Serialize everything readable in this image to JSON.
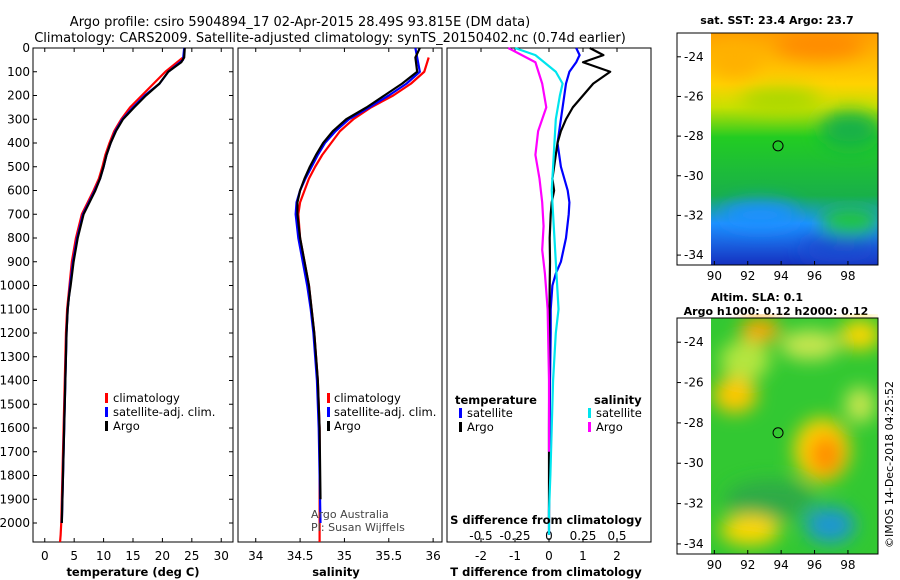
{
  "title_line1": "Argo profile: csiro 5904894_17 02-Apr-2015 28.49S 93.815E (DM data)",
  "title_line2": "Climatology: CARS2009. Satellite-adjusted climatology: synTS_20150402.nc (0.74d earlier)",
  "map_sst_title": "sat. SST: 23.4 Argo: 23.7",
  "map_sla_title1": "Altim. SLA: 0.1",
  "map_sla_title2": "Argo h1000: 0.12 h2000: 0.12",
  "credit_line1": "Argo Australia",
  "credit_line2": "PI: Susan Wijffels",
  "imos_stamp": "©IMOS 14-Dec-2018 04:25:52",
  "colors": {
    "climatology": "#ff0000",
    "satellite": "#0000ff",
    "argo": "#000000",
    "sal_satellite": "#00e5ee",
    "sal_argo": "#ff00ff"
  },
  "chart_data": [
    {
      "type": "line",
      "name": "temperature-panel",
      "xlabel": "temperature (deg C)",
      "ylabel": "",
      "xlim": [
        -2,
        32
      ],
      "ylim": [
        2080,
        0
      ],
      "xticks": [
        "0",
        "5",
        "10",
        "15",
        "20",
        "25",
        "30"
      ],
      "yticks": [
        "0",
        "100",
        "200",
        "300",
        "400",
        "500",
        "600",
        "700",
        "800",
        "900",
        "1000",
        "1100",
        "1200",
        "1300",
        "1400",
        "1500",
        "1600",
        "1700",
        "1800",
        "1900",
        "2000"
      ],
      "legend": [
        "climatology",
        "satellite-adj. clim.",
        "Argo"
      ],
      "series": [
        {
          "name": "climatology",
          "x": [
            23.5,
            22.5,
            20.5,
            18.5,
            16.5,
            14.5,
            13,
            11.8,
            11,
            10.3,
            9.8,
            9.2,
            8.3,
            7.3,
            6.3,
            5.3,
            4.6,
            4.2,
            4,
            3.8,
            3.6,
            3.5,
            3.4,
            3.3,
            3.2,
            3.1,
            3,
            2.9,
            2.8,
            2.7,
            2.6
          ],
          "y": [
            40,
            60,
            100,
            150,
            200,
            250,
            300,
            350,
            400,
            450,
            500,
            550,
            600,
            650,
            700,
            800,
            900,
            1000,
            1050,
            1100,
            1200,
            1300,
            1400,
            1500,
            1600,
            1700,
            1800,
            1900,
            2000,
            2050,
            2080
          ]
        },
        {
          "name": "satellite-adj. clim.",
          "x": [
            23.7,
            23.5,
            21,
            19.5,
            17,
            15,
            13.2,
            12,
            11.2,
            10.5,
            10,
            9.4,
            8.5,
            7.5,
            6.5,
            5.5,
            4.8,
            4.3,
            4.1,
            3.9,
            3.7,
            3.6,
            3.5,
            3.4,
            3.3,
            3.2,
            3.1,
            3,
            2.9
          ],
          "y": [
            0,
            50,
            100,
            150,
            200,
            250,
            300,
            350,
            400,
            450,
            500,
            550,
            600,
            650,
            700,
            800,
            900,
            1000,
            1050,
            1100,
            1200,
            1300,
            1400,
            1500,
            1600,
            1700,
            1800,
            1900,
            2000
          ]
        },
        {
          "name": "Argo",
          "x": [
            23.8,
            23.7,
            23.2,
            21,
            19.5,
            17.2,
            15.2,
            13.3,
            12.1,
            11.2,
            10.5,
            10,
            9.4,
            8.6,
            7.6,
            6.6,
            5.6,
            4.9,
            4.4,
            4.1,
            3.9,
            3.7,
            3.6,
            3.5,
            3.4,
            3.3,
            3.2,
            3.1,
            3,
            2.9
          ],
          "y": [
            0,
            40,
            60,
            100,
            150,
            200,
            250,
            300,
            350,
            400,
            450,
            500,
            550,
            600,
            650,
            700,
            800,
            900,
            1000,
            1050,
            1100,
            1200,
            1300,
            1400,
            1500,
            1600,
            1700,
            1800,
            1900,
            2000
          ]
        }
      ]
    },
    {
      "type": "line",
      "name": "salinity-panel",
      "xlabel": "salinity",
      "xlim": [
        33.8,
        36.1
      ],
      "ylim": [
        2080,
        0
      ],
      "xticks": [
        "34",
        "34.5",
        "35",
        "35.5",
        "36"
      ],
      "legend": [
        "climatology",
        "satellite-adj. clim.",
        "Argo"
      ],
      "series": [
        {
          "name": "climatology",
          "x": [
            35.95,
            35.9,
            35.75,
            35.55,
            35.3,
            35.1,
            34.95,
            34.85,
            34.75,
            34.67,
            34.6,
            34.55,
            34.5,
            34.48,
            34.5,
            34.55,
            34.6,
            34.63,
            34.66,
            34.68,
            34.7,
            34.71,
            34.72,
            34.72,
            34.72,
            34.72
          ],
          "y": [
            40,
            100,
            150,
            200,
            250,
            300,
            350,
            400,
            450,
            500,
            550,
            600,
            650,
            700,
            800,
            900,
            1000,
            1100,
            1200,
            1300,
            1400,
            1500,
            1600,
            1800,
            2000,
            2080
          ]
        },
        {
          "name": "satellite-adj. clim.",
          "x": [
            35.8,
            35.85,
            35.7,
            35.5,
            35.28,
            35.05,
            34.9,
            34.78,
            34.7,
            34.63,
            34.56,
            34.5,
            34.46,
            34.45,
            34.48,
            34.53,
            34.58,
            34.62,
            34.65,
            34.67,
            34.69,
            34.7,
            34.71,
            34.72,
            34.73
          ],
          "y": [
            0,
            100,
            150,
            200,
            250,
            300,
            350,
            400,
            450,
            500,
            550,
            600,
            650,
            700,
            800,
            900,
            1000,
            1100,
            1200,
            1300,
            1400,
            1500,
            1600,
            1800,
            2000
          ]
        },
        {
          "name": "Argo",
          "x": [
            35.85,
            35.8,
            35.82,
            35.65,
            35.45,
            35.25,
            35.02,
            34.87,
            34.76,
            34.68,
            34.61,
            34.55,
            34.5,
            34.47,
            34.47,
            34.5,
            34.55,
            34.6,
            34.63,
            34.66,
            34.68,
            34.7,
            34.71,
            34.72,
            34.73
          ],
          "y": [
            0,
            40,
            100,
            150,
            200,
            250,
            300,
            350,
            400,
            450,
            500,
            550,
            600,
            650,
            700,
            800,
            900,
            1000,
            1100,
            1200,
            1300,
            1400,
            1500,
            1600,
            1900
          ]
        }
      ]
    },
    {
      "type": "line",
      "name": "difference-panel",
      "xlabel": "T difference from climatology",
      "xlabel_top": "S difference from climatology",
      "xlim": [
        -3,
        3
      ],
      "ylim": [
        2080,
        0
      ],
      "xticks": [
        "-2",
        "-1",
        "0",
        "1",
        "2"
      ],
      "xticks_top": [
        "-0.5",
        "-0.25",
        "0",
        "0.25",
        "0.5"
      ],
      "legend_temperature_title": "temperature",
      "legend_salinity_title": "salinity",
      "legend_temperature": [
        "satellite",
        "Argo"
      ],
      "legend_salinity": [
        "satellite",
        "Argo"
      ],
      "series": [
        {
          "name": "temperature satellite",
          "x": [
            0.8,
            0.9,
            0.8,
            0.6,
            0.5,
            0.45,
            0.4,
            0.35,
            0.3,
            0.25,
            0.3,
            0.35,
            0.45,
            0.55,
            0.6,
            0.58,
            0.5,
            0.35,
            0.2,
            0.1,
            0.05,
            0.05,
            0.03,
            0.02,
            0.01,
            0.0,
            0.0
          ],
          "y": [
            0,
            30,
            60,
            100,
            150,
            200,
            250,
            300,
            350,
            400,
            450,
            500,
            550,
            600,
            650,
            700,
            800,
            900,
            950,
            1000,
            1100,
            1200,
            1400,
            1600,
            1800,
            1950,
            2050
          ]
        },
        {
          "name": "temperature Argo",
          "x": [
            1.2,
            1.6,
            1.0,
            1.8,
            1.3,
            1.0,
            0.7,
            0.5,
            0.35,
            0.25,
            0.2,
            0.15,
            0.1,
            0.15,
            0.08,
            0.05,
            0.02,
            0.03,
            0.02,
            0.01,
            0.0,
            0.0
          ],
          "y": [
            0,
            30,
            60,
            100,
            150,
            200,
            250,
            300,
            350,
            400,
            450,
            500,
            550,
            600,
            650,
            700,
            800,
            900,
            1000,
            1200,
            1600,
            2000
          ]
        },
        {
          "name": "salinity satellite",
          "x": [
            -0.25,
            -0.1,
            0.05,
            0.1,
            0.08,
            0.05,
            0.04,
            0.03,
            0.02,
            0.03,
            0.04,
            0.05,
            0.06,
            0.07,
            0.05,
            0.03,
            0.02,
            0.01,
            0.0,
            0.0
          ],
          "y": [
            0,
            30,
            100,
            150,
            200,
            300,
            400,
            500,
            600,
            700,
            800,
            900,
            1000,
            1100,
            1200,
            1400,
            1600,
            1800,
            1950,
            2050
          ]
        },
        {
          "name": "salinity Argo",
          "x": [
            -0.3,
            -0.1,
            -0.05,
            -0.02,
            -0.08,
            -0.1,
            -0.07,
            -0.05,
            -0.04,
            -0.05,
            -0.03,
            -0.01,
            0.0,
            0.0
          ],
          "y": [
            0,
            60,
            150,
            250,
            350,
            450,
            550,
            650,
            750,
            850,
            950,
            1100,
            1400,
            1700
          ]
        }
      ]
    },
    {
      "type": "heatmap",
      "name": "sst-map",
      "xticks": [
        "90",
        "92",
        "94",
        "96",
        "98"
      ],
      "yticks": [
        "-24",
        "-26",
        "-28",
        "-30",
        "-32",
        "-34"
      ],
      "xlim": [
        89.8,
        99.8
      ],
      "ylim": [
        -34.5,
        -22.8
      ],
      "marker": {
        "lon": 93.815,
        "lat": -28.49
      }
    },
    {
      "type": "heatmap",
      "name": "sla-map",
      "xticks": [
        "90",
        "92",
        "94",
        "96",
        "98"
      ],
      "yticks": [
        "-24",
        "-26",
        "-28",
        "-30",
        "-32",
        "-34"
      ],
      "xlim": [
        89.8,
        99.8
      ],
      "ylim": [
        -34.5,
        -22.8
      ],
      "marker": {
        "lon": 93.815,
        "lat": -28.49
      }
    }
  ]
}
